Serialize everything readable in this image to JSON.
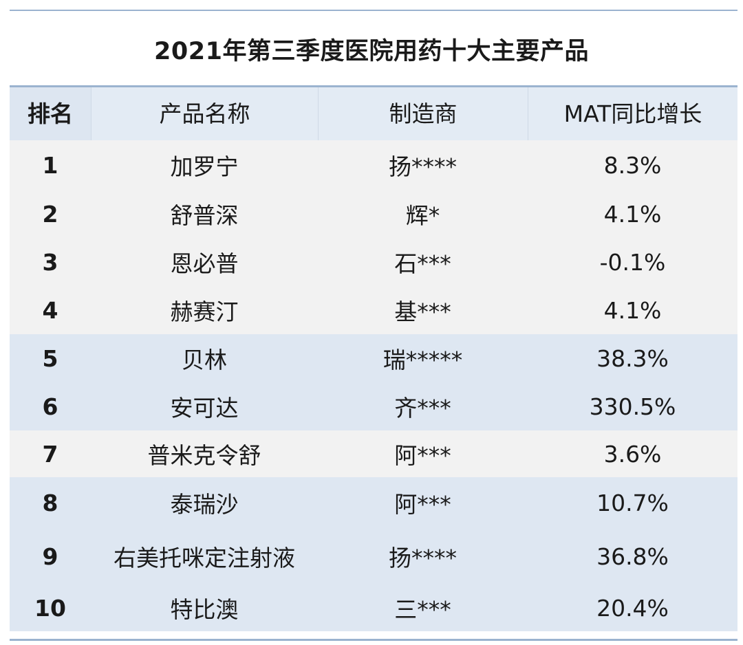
{
  "title": "2021年第三季度医院用药十大主要产品",
  "headers": [
    "排名",
    "产品名称",
    "制造商",
    "MAT同比增长"
  ],
  "rows": [
    {
      "rank": "1",
      "product": "加罗宁",
      "maker": "扬****",
      "growth": "8.3%"
    },
    {
      "rank": "2",
      "product": "舒普深",
      "maker": "辉*",
      "growth": "4.1%"
    },
    {
      "rank": "3",
      "product": "恩必普",
      "maker": "石***",
      "growth": "-0.1%"
    },
    {
      "rank": "4",
      "product": "赫赛汀",
      "maker": "基***",
      "growth": "4.1%"
    },
    {
      "rank": "5",
      "product": "贝林",
      "maker": "瑞*****",
      "growth": "38.3%"
    },
    {
      "rank": "6",
      "product": "安可达",
      "maker": "齐***",
      "growth": "330.5%"
    },
    {
      "rank": "7",
      "product": "普米克令舒",
      "maker": "阿***",
      "growth": "3.6%"
    },
    {
      "rank": "8",
      "product": "泰瑞沙",
      "maker": "阿***",
      "growth": "10.7%"
    },
    {
      "rank": "9",
      "product": "右美托咪定注射液",
      "maker": "扬****",
      "growth": "36.8%"
    },
    {
      "rank": "10",
      "product": "特比澳",
      "maker": "三***",
      "growth": "20.4%"
    }
  ],
  "colors": {
    "rule": "#9bb3cf",
    "header_bg": "#dde6f1",
    "gray_row": "#f2f2f2",
    "blue_row": "#dee7f2"
  }
}
